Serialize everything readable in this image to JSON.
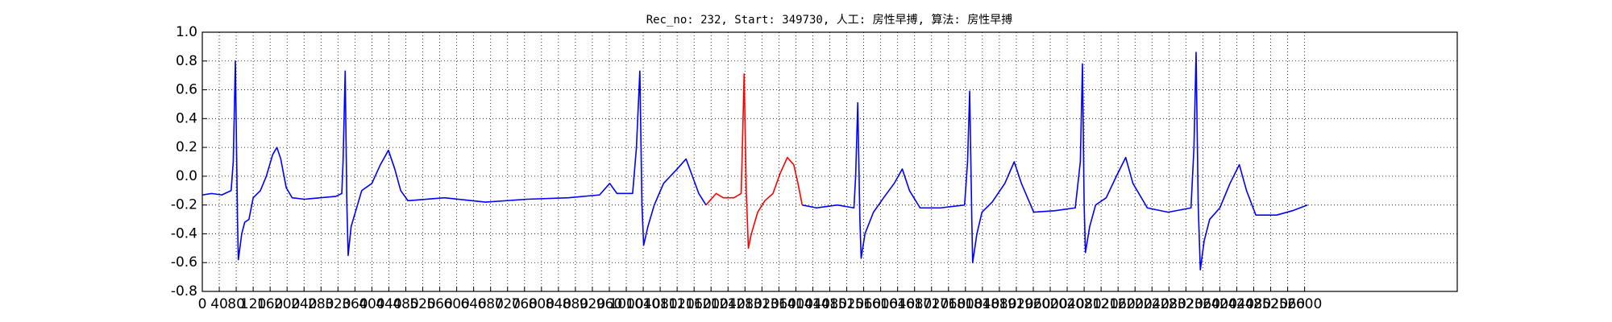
{
  "chart_data": {
    "type": "line",
    "title": "Rec_no: 232, Start: 349730, 人工: 房性早搏, 算法: 房性早搏",
    "x": [
      0,
      22,
      46,
      68,
      73,
      78,
      83,
      85,
      93,
      100,
      110,
      120,
      137,
      151,
      166,
      176,
      185,
      198,
      212,
      241,
      278,
      315,
      329,
      332,
      337,
      341,
      344,
      351,
      361,
      376,
      400,
      420,
      439,
      454,
      468,
      485,
      571,
      668,
      766,
      863,
      937,
      961,
      978,
      1015,
      1024,
      1032,
      1037,
      1041,
      1051,
      1066,
      1088,
      1120,
      1141,
      1156,
      1171,
      1188,
      1212,
      1229,
      1254,
      1271,
      1273,
      1278,
      1283,
      1288,
      1295,
      1310,
      1327,
      1346,
      1363,
      1380,
      1395,
      1405,
      1415,
      1449,
      1498,
      1537,
      1541,
      1546,
      1551,
      1554,
      1563,
      1583,
      1607,
      1632,
      1651,
      1668,
      1693,
      1741,
      1798,
      1805,
      1810,
      1815,
      1817,
      1827,
      1839,
      1863,
      1893,
      1915,
      1932,
      1961,
      2010,
      2059,
      2071,
      2076,
      2080,
      2083,
      2093,
      2107,
      2132,
      2156,
      2178,
      2195,
      2229,
      2278,
      2332,
      2339,
      2344,
      2349,
      2354,
      2363,
      2376,
      2400,
      2424,
      2446,
      2463,
      2485,
      2534,
      2571,
      2607
    ],
    "series": [
      {
        "color": "#0000ff",
        "values": [
          -0.13,
          -0.12,
          -0.13,
          -0.1,
          0.1,
          0.8,
          -0.3,
          -0.58,
          -0.4,
          -0.32,
          -0.3,
          -0.15,
          -0.1,
          0,
          0.15,
          0.2,
          0.12,
          -0.08,
          -0.15,
          -0.16,
          -0.15,
          -0.14,
          -0.12,
          0.1,
          0.73,
          -0.2,
          -0.55,
          -0.35,
          -0.25,
          -0.1,
          -0.05,
          0.08,
          0.18,
          0.05,
          -0.1,
          -0.17,
          -0.15,
          -0.18,
          -0.16,
          -0.15,
          -0.13,
          -0.05,
          -0.12,
          -0.12,
          0.2,
          0.73,
          -0.2,
          -0.48,
          -0.35,
          -0.2,
          -0.05,
          0.05,
          0.12,
          0,
          -0.12,
          -0.2,
          null,
          null,
          null,
          null,
          null,
          null,
          null,
          null,
          null,
          null,
          null,
          null,
          null,
          null,
          null,
          null,
          -0.2,
          -0.22,
          -0.2,
          -0.22,
          0,
          0.51,
          -0.3,
          -0.57,
          -0.4,
          -0.25,
          -0.15,
          -0.05,
          0.05,
          -0.1,
          -0.22,
          -0.22,
          -0.2,
          0.1,
          0.59,
          -0.3,
          -0.6,
          -0.4,
          -0.25,
          -0.18,
          -0.05,
          0.1,
          -0.05,
          -0.25,
          -0.24,
          -0.22,
          0.1,
          0.78,
          -0.2,
          -0.53,
          -0.35,
          -0.2,
          -0.15,
          0,
          0.13,
          -0.05,
          -0.22,
          -0.25,
          -0.22,
          0.2,
          0.86,
          -0.2,
          -0.65,
          -0.45,
          -0.3,
          -0.22,
          -0.05,
          0.08,
          -0.1,
          -0.27,
          -0.27,
          -0.24,
          -0.2
        ]
      },
      {
        "color": "#ff0000",
        "values": [
          null,
          null,
          null,
          null,
          null,
          null,
          null,
          null,
          null,
          null,
          null,
          null,
          null,
          null,
          null,
          null,
          null,
          null,
          null,
          null,
          null,
          null,
          null,
          null,
          null,
          null,
          null,
          null,
          null,
          null,
          null,
          null,
          null,
          null,
          null,
          null,
          null,
          null,
          null,
          null,
          null,
          null,
          null,
          null,
          null,
          null,
          null,
          null,
          null,
          null,
          null,
          null,
          null,
          null,
          null,
          -0.2,
          -0.12,
          -0.15,
          -0.15,
          -0.12,
          0.1,
          0.71,
          -0.1,
          -0.5,
          -0.4,
          -0.25,
          -0.17,
          -0.12,
          0.02,
          0.13,
          0.08,
          -0.05,
          -0.2,
          null,
          null,
          null,
          null,
          null,
          null,
          null,
          null,
          null,
          null,
          null,
          null,
          null,
          null,
          null,
          null,
          null,
          null,
          null,
          null,
          null,
          null,
          null,
          null,
          null,
          null,
          null,
          null,
          null,
          null,
          null,
          null,
          null,
          null,
          null,
          null,
          null,
          null,
          null,
          null,
          null,
          null,
          null,
          null,
          null,
          null,
          null,
          null,
          null,
          null,
          null,
          null,
          null,
          null,
          null,
          null
        ]
      }
    ],
    "xlim": [
      0,
      2960
    ],
    "xticks": [
      0,
      40,
      80,
      120,
      160,
      200,
      240,
      280,
      320,
      360,
      400,
      440,
      480,
      520,
      560,
      600,
      640,
      680,
      720,
      760,
      800,
      840,
      880,
      920,
      960,
      1000,
      1040,
      1080,
      1120,
      1160,
      1200,
      1240,
      1280,
      1320,
      1360,
      1400,
      1440,
      1480,
      1520,
      1560,
      1600,
      1640,
      1680,
      1720,
      1760,
      1800,
      1840,
      1880,
      1920,
      1960,
      2000,
      2040,
      2080,
      2120,
      2160,
      2200,
      2240,
      2280,
      2320,
      2360,
      2400,
      2440,
      2480,
      2520,
      2560,
      2600
    ],
    "ylim": [
      -0.8,
      1.0
    ],
    "yticks": [
      -0.8,
      -0.6,
      -0.4,
      -0.2,
      {
        "value": 0.0,
        "label": "0.0"
      },
      0.2,
      0.4,
      0.6,
      0.8,
      {
        "value": 1.0,
        "label": "1.0"
      }
    ],
    "grid": true
  }
}
